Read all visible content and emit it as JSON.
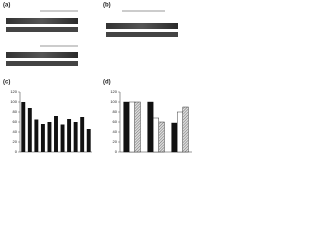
{
  "panels": [
    "(a)",
    "(b)",
    "(c)",
    "(d)"
  ],
  "chart_data": [
    {
      "type": "bar",
      "categories": [
        null,
        null,
        null,
        null,
        null,
        null,
        null,
        null,
        null,
        null,
        null
      ],
      "values": [
        100,
        88,
        65,
        56,
        60,
        72,
        55,
        66,
        60,
        70,
        46
      ],
      "color": "#111111",
      "ylim": [
        0,
        120
      ],
      "yticks": [
        0,
        20,
        40,
        60,
        80,
        100,
        120
      ]
    },
    {
      "type": "grouped",
      "categories": [
        null,
        null,
        null
      ],
      "series": [
        {
          "name": null,
          "color": "#111111",
          "values": [
            100,
            100,
            58
          ]
        },
        {
          "name": null,
          "color": "#ffffff",
          "values": [
            100,
            68,
            80
          ]
        },
        {
          "name": null,
          "color": "#9a9a9a",
          "values": [
            100,
            60,
            90
          ]
        }
      ],
      "ylim": [
        0,
        120
      ],
      "yticks": [
        0,
        20,
        40,
        60,
        80,
        100,
        120
      ]
    }
  ]
}
